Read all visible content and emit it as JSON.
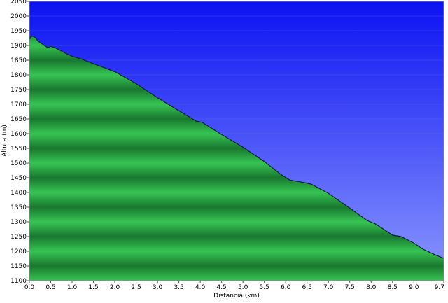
{
  "chart_data": {
    "type": "area",
    "title": "",
    "xlabel": "Distancia  (km)",
    "ylabel": "Altura (m)",
    "xlim": [
      0,
      9.7
    ],
    "ylim": [
      1100,
      2050
    ],
    "x_ticks": [
      "0.0",
      "0.5",
      "1.0",
      "1.5",
      "2.0",
      "2.5",
      "3.0",
      "3.5",
      "4.0",
      "4.5",
      "5.0",
      "5.5",
      "6.0",
      "6.5",
      "7.0",
      "7.5",
      "8.0",
      "8.5",
      "9.0",
      "9.7"
    ],
    "y_ticks": [
      "2050",
      "2000",
      "1950",
      "1900",
      "1850",
      "1800",
      "1750",
      "1700",
      "1650",
      "1600",
      "1550",
      "1500",
      "1450",
      "1400",
      "1350",
      "1300",
      "1250",
      "1200",
      "1150",
      "1100"
    ],
    "grid": true,
    "colors": {
      "sky_top": "#0b12f2",
      "sky_bottom": "#8c98ff",
      "fill_light": "#37c453",
      "fill_dark": "#18782f",
      "line": "#0f1f4a"
    },
    "series": [
      {
        "x": [
          0.0,
          0.05,
          0.1,
          0.15,
          0.2,
          0.3,
          0.4,
          0.45,
          0.5,
          0.6,
          0.7,
          0.8,
          1.0,
          1.2,
          1.5,
          1.8,
          1.95,
          2.0,
          2.5,
          3.0,
          3.5,
          3.9,
          4.0,
          4.05,
          4.5,
          5.0,
          5.5,
          5.9,
          6.1,
          6.3,
          6.45,
          6.6,
          7.0,
          7.5,
          7.9,
          8.0,
          8.1,
          8.3,
          8.5,
          8.7,
          9.0,
          9.2,
          9.5,
          9.7
        ],
        "y": [
          1920,
          1932,
          1930,
          1925,
          1915,
          1905,
          1895,
          1893,
          1897,
          1892,
          1885,
          1877,
          1863,
          1855,
          1838,
          1822,
          1813,
          1811,
          1770,
          1722,
          1678,
          1643,
          1640,
          1638,
          1597,
          1554,
          1505,
          1460,
          1442,
          1437,
          1433,
          1428,
          1397,
          1347,
          1305,
          1299,
          1293,
          1274,
          1255,
          1250,
          1228,
          1208,
          1188,
          1176
        ]
      }
    ]
  }
}
